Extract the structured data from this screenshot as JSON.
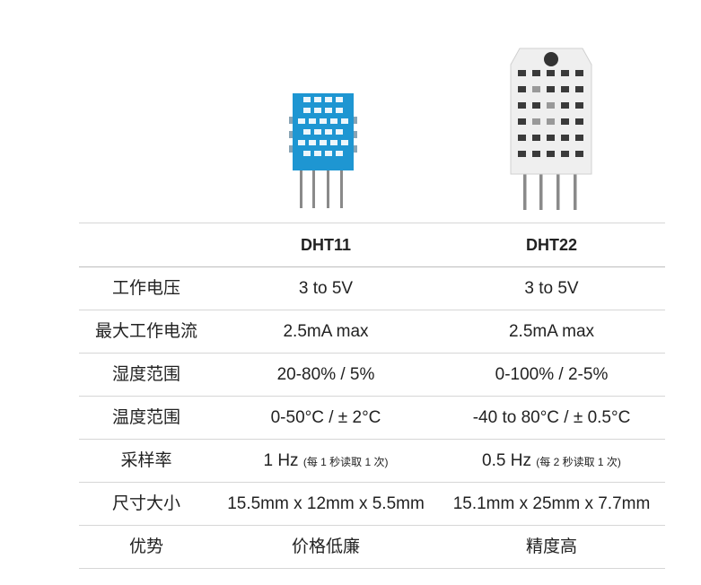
{
  "colors": {
    "dht11_body": "#1e96d2",
    "dht22_body": "#eeeeee",
    "pins": "#8a8a8a",
    "divider": "#d6d6d6"
  },
  "images": {
    "dht11": "dht11-sensor",
    "dht22": "dht22-sensor"
  },
  "table": {
    "headers": [
      "",
      "DHT11",
      "DHT22"
    ],
    "rows": [
      {
        "label": "工作电压",
        "dht11": "3 to 5V",
        "dht22": "3 to 5V"
      },
      {
        "label": "最大工作电流",
        "dht11": "2.5mA max",
        "dht22": "2.5mA max"
      },
      {
        "label": "湿度范围",
        "dht11": "20-80% / 5%",
        "dht22": "0-100% / 2-5%"
      },
      {
        "label": "温度范围",
        "dht11": "0-50°C / ± 2°C",
        "dht22": "-40 to 80°C / ± 0.5°C"
      },
      {
        "label": "采样率",
        "dht11": "1 Hz",
        "dht11_note": "(每 1 秒读取 1 次)",
        "dht22": "0.5 Hz",
        "dht22_note": "(每 2 秒读取 1 次)"
      },
      {
        "label": "尺寸大小",
        "dht11": "15.5mm x 12mm x 5.5mm",
        "dht22": "15.1mm x 25mm x 7.7mm"
      },
      {
        "label": "优势",
        "dht11": "价格低廉",
        "dht22": "精度高"
      }
    ]
  }
}
